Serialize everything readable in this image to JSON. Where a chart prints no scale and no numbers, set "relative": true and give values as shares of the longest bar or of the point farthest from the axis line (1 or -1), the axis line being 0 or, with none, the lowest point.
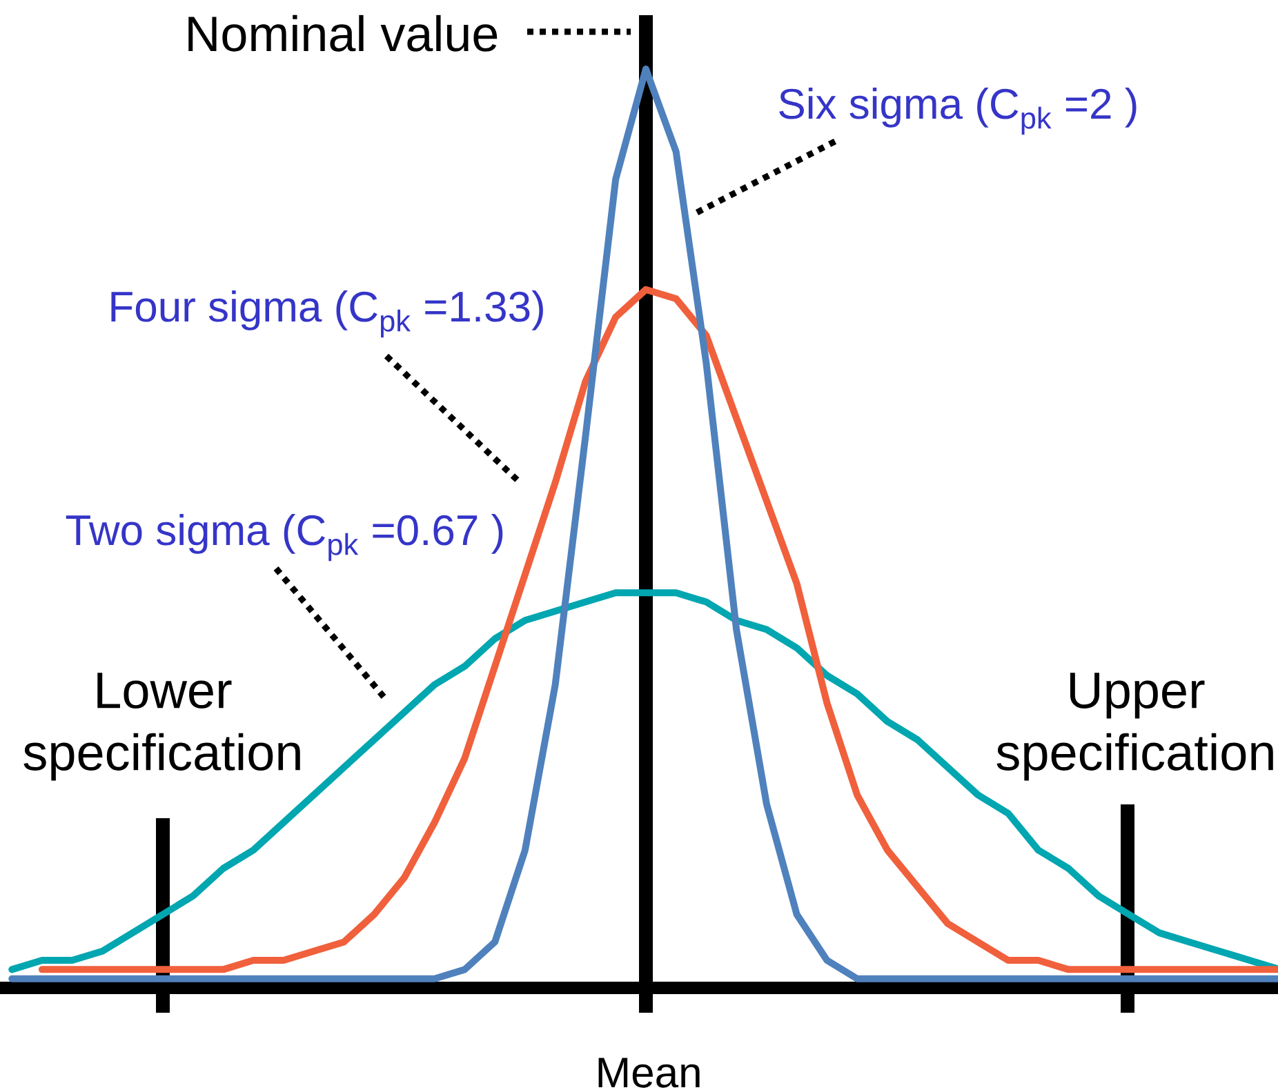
{
  "chart_data": {
    "type": "line",
    "relative": true,
    "xlabel": "Mean",
    "categories": [
      null,
      null,
      null,
      null,
      null,
      null,
      null,
      null,
      null,
      null,
      null,
      null,
      null,
      null,
      null,
      null,
      null,
      null,
      null,
      null,
      null,
      null,
      null,
      null,
      null,
      null,
      null,
      null,
      null,
      null,
      null,
      null,
      null,
      null,
      null,
      null,
      null,
      null,
      null,
      null,
      null,
      null,
      null
    ],
    "series": [
      {
        "name": "Six sigma (C$_{pk}$ =2 )",
        "color": "#4f81bd",
        "values": [
          0.01,
          0.01,
          0.01,
          0.01,
          0.01,
          0.01,
          0.01,
          0.01,
          0.01,
          0.01,
          0.01,
          0.01,
          0.01,
          0.01,
          0.01,
          0.02,
          0.05,
          0.15,
          0.33,
          0.6,
          0.88,
          1,
          0.91,
          0.68,
          0.39,
          0.2,
          0.08,
          0.03,
          0.01,
          0.01,
          0.01,
          0.01,
          0.01,
          0.01,
          0.01,
          0.01,
          0.01,
          0.01,
          0.01,
          0.01,
          0.01,
          0.01,
          0.01
        ]
      },
      {
        "name": "Four sigma (C$_{pk}$ =1.33)",
        "color": "#f0603c",
        "values": [
          null,
          0.02,
          0.02,
          0.02,
          0.02,
          0.02,
          0.02,
          0.02,
          0.03,
          0.03,
          0.04,
          0.05,
          0.08,
          0.12,
          0.18,
          0.25,
          0.35,
          0.45,
          0.55,
          0.66,
          0.73,
          0.76,
          0.75,
          0.71,
          0.62,
          0.53,
          0.44,
          0.31,
          0.21,
          0.15,
          0.11,
          0.07,
          0.05,
          0.03,
          0.03,
          0.02,
          0.02,
          0.02,
          0.02,
          0.02,
          0.02,
          0.02,
          0.02
        ]
      },
      {
        "name": "Two sigma (C$_{pk}$ =0.67 )",
        "color": "#00a6b0",
        "values": [
          0.02,
          0.03,
          0.03,
          0.04,
          0.06,
          0.08,
          0.1,
          0.13,
          0.15,
          0.18,
          0.21,
          0.24,
          0.27,
          0.3,
          0.33,
          0.35,
          0.38,
          0.4,
          0.41,
          0.42,
          0.43,
          0.43,
          0.43,
          0.42,
          0.4,
          0.39,
          0.37,
          0.34,
          0.32,
          0.29,
          0.27,
          0.24,
          0.21,
          0.19,
          0.15,
          0.13,
          0.1,
          0.08,
          0.06,
          0.05,
          0.04,
          0.03,
          0.02
        ]
      }
    ],
    "annotations": [
      "Nominal value",
      "Lower specification",
      "Upper specification"
    ]
  }
}
